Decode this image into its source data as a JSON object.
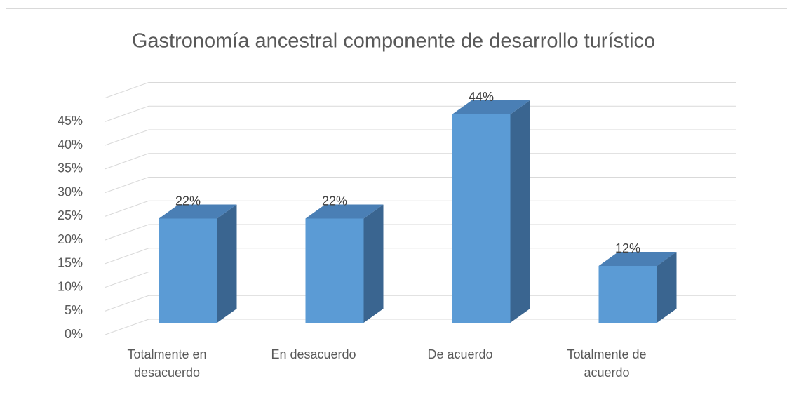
{
  "chart_data": {
    "type": "bar3d",
    "title": "Gastronomía ancestral componente de desarrollo turístico",
    "categories": [
      "Totalmente en desacuerdo",
      "En desacuerdo",
      "De acuerdo",
      "Totalmente de acuerdo"
    ],
    "values": [
      22,
      22,
      44,
      12
    ],
    "value_labels": [
      "22%",
      "22%",
      "44%",
      "12%"
    ],
    "color": "#5b9bd5",
    "ylim": [
      0,
      50
    ],
    "yticks": [
      {
        "value": 0,
        "label": "0%"
      },
      {
        "value": 5,
        "label": "5%"
      },
      {
        "value": 10,
        "label": "10%"
      },
      {
        "value": 15,
        "label": "15%"
      },
      {
        "value": 20,
        "label": "20%"
      },
      {
        "value": 25,
        "label": "25%"
      },
      {
        "value": 30,
        "label": "30%"
      },
      {
        "value": 35,
        "label": "35%"
      },
      {
        "value": 40,
        "label": "40%"
      },
      {
        "value": 45,
        "label": "45%"
      }
    ],
    "grid": true
  }
}
